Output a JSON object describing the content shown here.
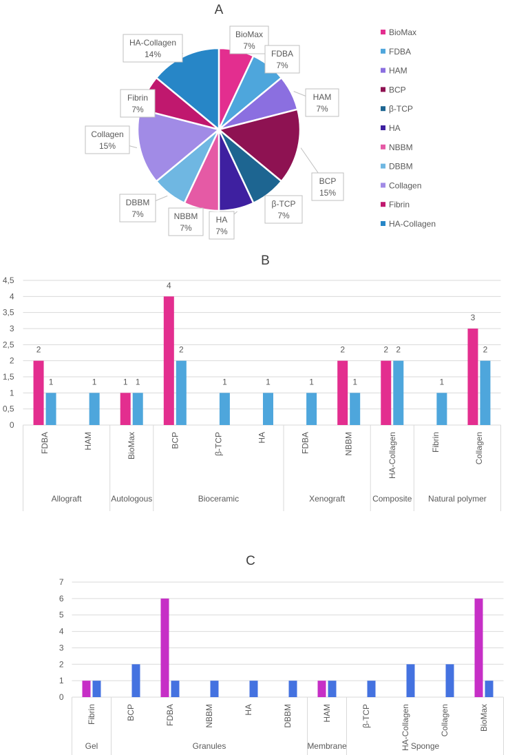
{
  "chart_data": [
    {
      "type": "pie",
      "title": "A",
      "slices": [
        {
          "label": "BioMax",
          "value": 7,
          "text": "7%",
          "color": "#e32e8f"
        },
        {
          "label": "FDBA",
          "value": 7,
          "text": "7%",
          "color": "#4ea6dc"
        },
        {
          "label": "HAM",
          "value": 7,
          "text": "7%",
          "color": "#8b6fe0"
        },
        {
          "label": "BCP",
          "value": 15,
          "text": "15%",
          "color": "#8e1252"
        },
        {
          "label": "β-TCP",
          "value": 7,
          "text": "7%",
          "color": "#1d6591"
        },
        {
          "label": "HA",
          "value": 7,
          "text": "7%",
          "color": "#3e20a0"
        },
        {
          "label": "NBBM",
          "value": 7,
          "text": "7%",
          "color": "#e55aa5"
        },
        {
          "label": "DBBM",
          "value": 7,
          "text": "7%",
          "color": "#6fb7e2"
        },
        {
          "label": "Collagen",
          "value": 15,
          "text": "15%",
          "color": "#a18be6"
        },
        {
          "label": "Fibrin",
          "value": 7,
          "text": "7%",
          "color": "#c0186e"
        },
        {
          "label": "HA-Collagen",
          "value": 14,
          "text": "14%",
          "color": "#2786c7"
        }
      ],
      "legend": "right"
    },
    {
      "type": "bar",
      "title": "B",
      "categories": [
        "FDBA",
        "HAM",
        "BioMax",
        "BCP",
        "β-TCP",
        "HA",
        "FDBA",
        "NBBM",
        "HA-Collagen",
        "Fibrin",
        "Collagen"
      ],
      "groups": [
        {
          "label": "Allograft",
          "count": 2
        },
        {
          "label": "Autologous",
          "count": 1
        },
        {
          "label": "Bioceramic",
          "count": 3
        },
        {
          "label": "Xenograft",
          "count": 2
        },
        {
          "label": "Composite",
          "count": 1
        },
        {
          "label": "Natural polymer",
          "count": 2
        }
      ],
      "series": [
        {
          "color": "#e32e8f",
          "values": [
            2,
            null,
            1,
            4,
            null,
            null,
            null,
            2,
            2,
            null,
            3
          ]
        },
        {
          "color": "#4ea6dc",
          "values": [
            1,
            1,
            1,
            2,
            1,
            1,
            1,
            1,
            2,
            1,
            2
          ]
        }
      ],
      "ylim": [
        0,
        4.5
      ],
      "yticks": [
        "0",
        "0,5",
        "1",
        "1,5",
        "2",
        "2,5",
        "3",
        "3,5",
        "4",
        "4,5"
      ],
      "data_labels": true,
      "grid": true
    },
    {
      "type": "bar",
      "title": "C",
      "categories": [
        "Fibrin",
        "BCP",
        "FDBA",
        "NBBM",
        "HA",
        "DBBM",
        "HAM",
        "β-TCP",
        "HA-Collagen",
        "Collagen",
        "BioMax"
      ],
      "groups": [
        {
          "label": "Gel",
          "count": 1
        },
        {
          "label": "Granules",
          "count": 5
        },
        {
          "label": "Membrane",
          "count": 1
        },
        {
          "label": "Sponge",
          "count": 4
        }
      ],
      "series": [
        {
          "color": "#c62fc6",
          "values": [
            1,
            null,
            6,
            null,
            null,
            null,
            1,
            null,
            null,
            null,
            6
          ]
        },
        {
          "color": "#4472e0",
          "values": [
            1,
            2,
            1,
            1,
            1,
            1,
            1,
            1,
            2,
            2,
            1
          ]
        }
      ],
      "ylim": [
        0,
        7
      ],
      "yticks": [
        "0",
        "1",
        "2",
        "3",
        "4",
        "5",
        "6",
        "7"
      ],
      "data_labels": false,
      "grid": true
    }
  ]
}
